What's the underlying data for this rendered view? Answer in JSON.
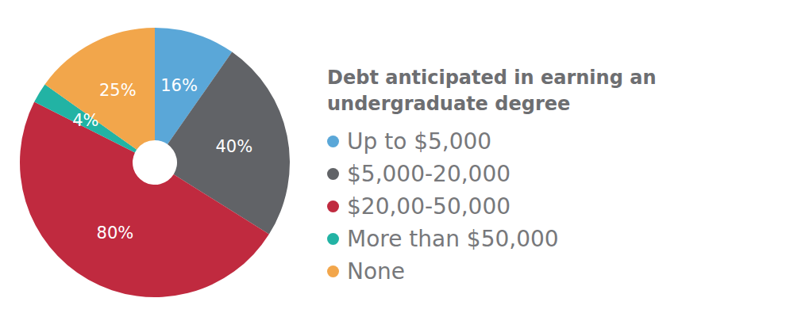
{
  "chart_data": {
    "type": "pie",
    "title": "Debt anticipated in earning an undergraduate degree",
    "categories": [
      "Up to $5,000",
      "$5,000-20,000",
      "$20,00-50,000",
      "More than $50,000",
      "None"
    ],
    "values": [
      16,
      40,
      80,
      4,
      25
    ],
    "value_labels": [
      "16%",
      "40%",
      "80%",
      "4%",
      "25%"
    ],
    "colors": [
      "#5aa7d8",
      "#616367",
      "#c02a3f",
      "#22b3a4",
      "#f2a64b"
    ],
    "data_labels": true,
    "legend": "right"
  }
}
